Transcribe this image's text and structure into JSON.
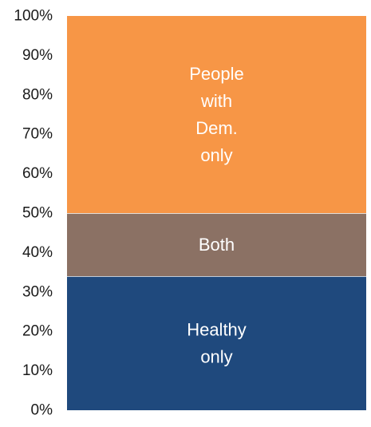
{
  "chart_data": {
    "type": "bar",
    "stacked": true,
    "percent": true,
    "categories": [
      ""
    ],
    "ylim": [
      0,
      100
    ],
    "y_ticks": [
      "0%",
      "10%",
      "20%",
      "30%",
      "40%",
      "50%",
      "60%",
      "70%",
      "80%",
      "90%",
      "100%"
    ],
    "grid": false,
    "legend": "none",
    "series": [
      {
        "label_lines": [
          "Healthy",
          "only"
        ],
        "values": [
          34
        ],
        "color": "#1f497d"
      },
      {
        "label_lines": [
          "Both"
        ],
        "values": [
          16
        ],
        "color": "#8b7164"
      },
      {
        "label_lines": [
          "People",
          "with",
          "Dem.",
          "only"
        ],
        "values": [
          50
        ],
        "color": "#f79646"
      }
    ]
  }
}
